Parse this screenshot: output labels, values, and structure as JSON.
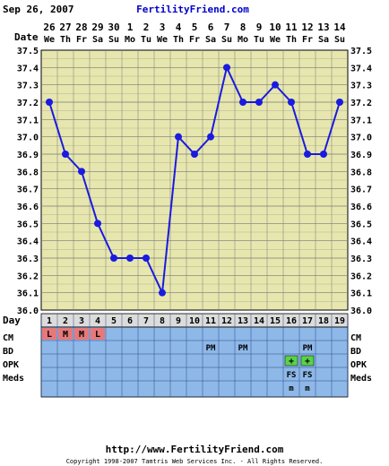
{
  "header": {
    "date": "Sep 26, 2007",
    "site": "FertilityFriend.com"
  },
  "labels": {
    "date_row": "Date",
    "day_row": "Day",
    "cm": "CM",
    "bd": "BD",
    "opk": "OPK",
    "meds": "Meds"
  },
  "chart_data": {
    "type": "line",
    "ylim": [
      36.0,
      37.5
    ],
    "ylabel": "",
    "yticks": [
      "37.5",
      "37.4",
      "37.3",
      "37.2",
      "37.1",
      "37.0",
      "36.9",
      "36.8",
      "36.7",
      "36.6",
      "36.5",
      "36.4",
      "36.3",
      "36.2",
      "36.1",
      "36.0"
    ],
    "dates": [
      "26",
      "27",
      "28",
      "29",
      "30",
      "1",
      "2",
      "3",
      "4",
      "5",
      "6",
      "7",
      "8",
      "9",
      "10",
      "11",
      "12",
      "13",
      "14"
    ],
    "weekdays": [
      "We",
      "Th",
      "Fr",
      "Sa",
      "Su",
      "Mo",
      "Tu",
      "We",
      "Th",
      "Fr",
      "Sa",
      "Su",
      "Mo",
      "Tu",
      "We",
      "Th",
      "Fr",
      "Sa",
      "Su"
    ],
    "days": [
      "1",
      "2",
      "3",
      "4",
      "5",
      "6",
      "7",
      "8",
      "9",
      "10",
      "11",
      "12",
      "13",
      "14",
      "15",
      "16",
      "17",
      "18",
      "19"
    ],
    "temperatures": [
      37.2,
      36.9,
      36.8,
      36.5,
      36.3,
      36.3,
      36.3,
      36.1,
      37.0,
      36.9,
      37.0,
      37.4,
      37.2,
      37.2,
      37.3,
      37.2,
      36.9,
      36.9,
      37.2
    ],
    "cm": [
      "L",
      "M",
      "M",
      "L",
      "",
      "",
      "",
      "",
      "",
      "",
      "",
      "",
      "",
      "",
      "",
      "",
      "",
      "",
      ""
    ],
    "bd": [
      "",
      "",
      "",
      "",
      "",
      "",
      "",
      "",
      "",
      "",
      "PM",
      "",
      "PM",
      "",
      "",
      "",
      "PM",
      "",
      ""
    ],
    "opk": [
      "",
      "",
      "",
      "",
      "",
      "",
      "",
      "",
      "",
      "",
      "",
      "",
      "",
      "",
      "",
      "+",
      "+",
      "",
      ""
    ],
    "meds": [
      "",
      "",
      "",
      "",
      "",
      "",
      "",
      "",
      "",
      "",
      "",
      "",
      "",
      "",
      "",
      "FS",
      "FS",
      "",
      ""
    ],
    "meds2": [
      "",
      "",
      "",
      "",
      "",
      "",
      "",
      "",
      "",
      "",
      "",
      "",
      "",
      "",
      "",
      "m",
      "m",
      "",
      ""
    ],
    "colors": {
      "grid_bg": "#e6e6ae",
      "grid_line": "#7a7a7a",
      "line": "#1a1ae0",
      "rows_bg": "#8eb8e8",
      "cm_cell": "#e8787a",
      "opk_cell": "#5ad24a",
      "accent_text": "#0000cc"
    }
  },
  "footer": {
    "url": "http://www.FertilityFriend.com",
    "copyright": "Copyright 1998-2007 Tamtris Web Services Inc. - All Rights Reserved."
  }
}
